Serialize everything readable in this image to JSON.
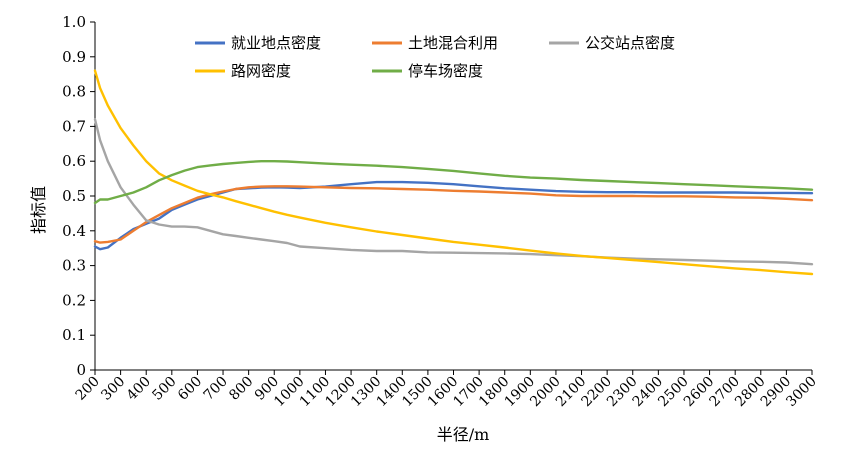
{
  "chart_data": {
    "type": "line",
    "title": "",
    "xlabel": "半径/m",
    "ylabel": "指标值",
    "xlim": [
      200,
      3000
    ],
    "ylim": [
      0,
      1.0
    ],
    "x_ticks": [
      200,
      300,
      400,
      500,
      600,
      700,
      800,
      900,
      1000,
      1100,
      1200,
      1300,
      1400,
      1500,
      1600,
      1700,
      1800,
      1900,
      2000,
      2100,
      2200,
      2300,
      2400,
      2500,
      2600,
      2700,
      2800,
      2900,
      3000
    ],
    "y_ticks": [
      "0",
      "0.1",
      "0.2",
      "0.3",
      "0.4",
      "0.5",
      "0.6",
      "0.7",
      "0.8",
      "0.9",
      "1.0"
    ],
    "grid": false,
    "legend_position": "top",
    "x": [
      200,
      220,
      250,
      300,
      350,
      400,
      450,
      500,
      550,
      600,
      650,
      700,
      750,
      800,
      850,
      900,
      950,
      1000,
      1100,
      1200,
      1300,
      1400,
      1500,
      1600,
      1700,
      1800,
      1900,
      2000,
      2100,
      2200,
      2300,
      2400,
      2500,
      2600,
      2700,
      2800,
      2900,
      3000
    ],
    "series": [
      {
        "name": "就业地点密度",
        "color": "#4472C4",
        "values": [
          0.355,
          0.347,
          0.352,
          0.38,
          0.405,
          0.42,
          0.435,
          0.46,
          0.475,
          0.49,
          0.5,
          0.51,
          0.52,
          0.522,
          0.524,
          0.525,
          0.524,
          0.523,
          0.527,
          0.534,
          0.54,
          0.54,
          0.538,
          0.534,
          0.528,
          0.522,
          0.518,
          0.514,
          0.512,
          0.511,
          0.511,
          0.51,
          0.51,
          0.51,
          0.51,
          0.509,
          0.509,
          0.508
        ]
      },
      {
        "name": "土地混合利用",
        "color": "#ED7D31",
        "values": [
          0.37,
          0.366,
          0.368,
          0.375,
          0.4,
          0.425,
          0.445,
          0.465,
          0.48,
          0.495,
          0.505,
          0.513,
          0.52,
          0.525,
          0.527,
          0.528,
          0.528,
          0.527,
          0.525,
          0.523,
          0.522,
          0.52,
          0.518,
          0.515,
          0.513,
          0.51,
          0.507,
          0.502,
          0.5,
          0.5,
          0.5,
          0.499,
          0.499,
          0.498,
          0.496,
          0.495,
          0.492,
          0.488
        ]
      },
      {
        "name": "公交站点密度",
        "color": "#A5A5A5",
        "values": [
          0.72,
          0.66,
          0.6,
          0.525,
          0.475,
          0.43,
          0.418,
          0.412,
          0.412,
          0.41,
          0.4,
          0.39,
          0.385,
          0.38,
          0.375,
          0.37,
          0.365,
          0.355,
          0.35,
          0.345,
          0.342,
          0.342,
          0.338,
          0.337,
          0.336,
          0.335,
          0.333,
          0.33,
          0.327,
          0.323,
          0.32,
          0.318,
          0.316,
          0.314,
          0.312,
          0.311,
          0.309,
          0.304
        ]
      },
      {
        "name": "路网密度",
        "color": "#FFC000",
        "values": [
          0.86,
          0.81,
          0.76,
          0.695,
          0.645,
          0.6,
          0.565,
          0.545,
          0.53,
          0.515,
          0.505,
          0.496,
          0.485,
          0.475,
          0.465,
          0.455,
          0.446,
          0.438,
          0.423,
          0.41,
          0.398,
          0.388,
          0.378,
          0.368,
          0.36,
          0.352,
          0.343,
          0.335,
          0.328,
          0.322,
          0.316,
          0.31,
          0.304,
          0.298,
          0.292,
          0.287,
          0.281,
          0.276
        ]
      },
      {
        "name": "停车场密度",
        "color": "#70AD47",
        "values": [
          0.48,
          0.49,
          0.49,
          0.5,
          0.51,
          0.525,
          0.545,
          0.56,
          0.573,
          0.583,
          0.588,
          0.592,
          0.595,
          0.598,
          0.6,
          0.6,
          0.599,
          0.597,
          0.593,
          0.59,
          0.587,
          0.583,
          0.578,
          0.572,
          0.565,
          0.558,
          0.553,
          0.55,
          0.546,
          0.543,
          0.54,
          0.537,
          0.534,
          0.531,
          0.528,
          0.525,
          0.522,
          0.518
        ]
      }
    ]
  }
}
